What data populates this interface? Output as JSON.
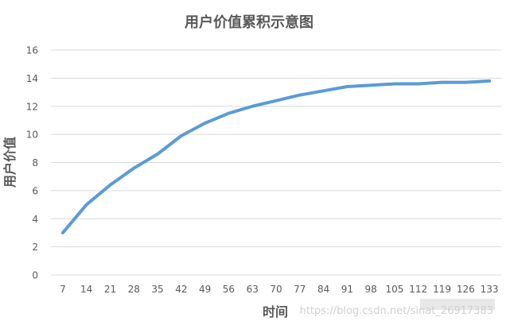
{
  "chart_data": {
    "type": "line",
    "title": "用户价值累积示意图",
    "xlabel": "时间",
    "ylabel": "用户价值",
    "x": [
      7,
      14,
      21,
      28,
      35,
      42,
      49,
      56,
      63,
      70,
      77,
      84,
      91,
      98,
      105,
      112,
      119,
      126,
      133
    ],
    "values": [
      3.0,
      5.0,
      6.4,
      7.6,
      8.6,
      9.9,
      10.8,
      11.5,
      12.0,
      12.4,
      12.8,
      13.1,
      13.4,
      13.5,
      13.6,
      13.6,
      13.7,
      13.7,
      13.8
    ],
    "ylim": [
      0,
      16
    ],
    "yticks": [
      0,
      2,
      4,
      6,
      8,
      10,
      12,
      14,
      16
    ],
    "grid": true,
    "line_color": "#5B9BD5",
    "grid_color": "#D9D9D9",
    "text_color": "#595959"
  },
  "watermark": {
    "text": "https://blog.csdn.net/sinat_26917383"
  }
}
